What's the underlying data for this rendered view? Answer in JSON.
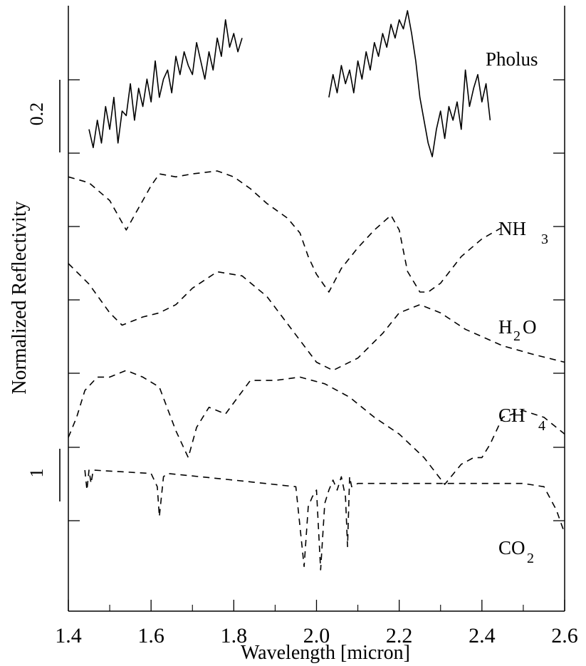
{
  "chart_data": {
    "type": "line",
    "title": "",
    "xlabel": "Wavelength [micron]",
    "ylabel": "Normalized Reflectivity",
    "xlim": [
      1.4,
      2.6
    ],
    "x_ticks": [
      "1.4",
      "1.6",
      "1.8",
      "2.0",
      "2.2",
      "2.4",
      "2.6"
    ],
    "grid": false,
    "scale_bars": [
      {
        "label": "0.2",
        "value": 0.2
      },
      {
        "label": "1",
        "value": 1
      }
    ],
    "series": [
      {
        "name": "Pholus",
        "style": "solid",
        "segments": [
          {
            "x": [
              1.45,
              1.46,
              1.47,
              1.48,
              1.49,
              1.5,
              1.51,
              1.52,
              1.53,
              1.54,
              1.55,
              1.56,
              1.57,
              1.58,
              1.59,
              1.6,
              1.61,
              1.62,
              1.63,
              1.64,
              1.65,
              1.66,
              1.67,
              1.68,
              1.69,
              1.7,
              1.71,
              1.72,
              1.73,
              1.74,
              1.75,
              1.76,
              1.77,
              1.78,
              1.79,
              1.8,
              1.81,
              1.82
            ],
            "y": [
              0.07,
              0.03,
              0.09,
              0.04,
              0.12,
              0.07,
              0.14,
              0.04,
              0.11,
              0.1,
              0.17,
              0.09,
              0.16,
              0.12,
              0.18,
              0.13,
              0.22,
              0.14,
              0.18,
              0.2,
              0.15,
              0.23,
              0.19,
              0.24,
              0.21,
              0.19,
              0.26,
              0.22,
              0.18,
              0.24,
              0.2,
              0.27,
              0.23,
              0.31,
              0.25,
              0.28,
              0.24,
              0.27
            ]
          },
          {
            "x": [
              2.03,
              2.04,
              2.05,
              2.06,
              2.07,
              2.08,
              2.09,
              2.1,
              2.11,
              2.12,
              2.13,
              2.14,
              2.15,
              2.16,
              2.17,
              2.18,
              2.19,
              2.2,
              2.21,
              2.22,
              2.23,
              2.24,
              2.25,
              2.26,
              2.27,
              2.28,
              2.29,
              2.3,
              2.31,
              2.32,
              2.33,
              2.34,
              2.35,
              2.36,
              2.37,
              2.38,
              2.39,
              2.4,
              2.41,
              2.42
            ],
            "y": [
              0.14,
              0.19,
              0.15,
              0.21,
              0.17,
              0.2,
              0.15,
              0.22,
              0.18,
              0.24,
              0.2,
              0.26,
              0.23,
              0.28,
              0.25,
              0.3,
              0.27,
              0.31,
              0.29,
              0.33,
              0.28,
              0.22,
              0.14,
              0.09,
              0.04,
              0.01,
              0.07,
              0.11,
              0.05,
              0.12,
              0.09,
              0.13,
              0.07,
              0.2,
              0.12,
              0.16,
              0.19,
              0.13,
              0.17,
              0.09
            ]
          }
        ]
      },
      {
        "name": "NH3",
        "style": "dashed",
        "x": [
          1.4,
          1.45,
          1.5,
          1.54,
          1.56,
          1.6,
          1.62,
          1.66,
          1.7,
          1.76,
          1.8,
          1.84,
          1.88,
          1.93,
          1.96,
          1.98,
          2.0,
          2.03,
          2.06,
          2.1,
          2.14,
          2.18,
          2.2,
          2.22,
          2.25,
          2.27,
          2.3,
          2.35,
          2.4,
          2.45
        ],
        "y": [
          0.3,
          0.28,
          0.22,
          0.12,
          0.17,
          0.27,
          0.31,
          0.3,
          0.31,
          0.32,
          0.3,
          0.26,
          0.21,
          0.16,
          0.11,
          0.03,
          -0.03,
          -0.09,
          -0.01,
          0.06,
          0.12,
          0.17,
          0.12,
          -0.02,
          -0.09,
          -0.09,
          -0.06,
          0.03,
          0.09,
          0.13
        ]
      },
      {
        "name": "H2O",
        "style": "dashed",
        "x": [
          1.4,
          1.45,
          1.5,
          1.53,
          1.58,
          1.62,
          1.66,
          1.7,
          1.76,
          1.82,
          1.88,
          1.94,
          2.0,
          2.04,
          2.1,
          2.16,
          2.2,
          2.25,
          2.3,
          2.36,
          2.45,
          2.52,
          2.6
        ],
        "y": [
          0.3,
          0.25,
          0.18,
          0.15,
          0.17,
          0.18,
          0.2,
          0.24,
          0.28,
          0.27,
          0.22,
          0.14,
          0.06,
          0.04,
          0.07,
          0.13,
          0.18,
          0.2,
          0.18,
          0.14,
          0.1,
          0.08,
          0.06
        ]
      },
      {
        "name": "CH4",
        "style": "dashed",
        "x": [
          1.4,
          1.42,
          1.44,
          1.47,
          1.5,
          1.54,
          1.58,
          1.62,
          1.66,
          1.69,
          1.71,
          1.74,
          1.78,
          1.81,
          1.84,
          1.9,
          1.96,
          2.02,
          2.08,
          2.14,
          2.2,
          2.26,
          2.31,
          2.35,
          2.38,
          2.4,
          2.42,
          2.45,
          2.5,
          2.55,
          2.6
        ],
        "y": [
          0.12,
          0.18,
          0.26,
          0.3,
          0.3,
          0.32,
          0.3,
          0.27,
          0.14,
          0.06,
          0.15,
          0.21,
          0.19,
          0.24,
          0.29,
          0.29,
          0.3,
          0.28,
          0.24,
          0.18,
          0.13,
          0.06,
          -0.02,
          0.04,
          0.06,
          0.06,
          0.1,
          0.18,
          0.2,
          0.18,
          0.13
        ]
      },
      {
        "name": "CO2",
        "style": "dashed",
        "x": [
          1.44,
          1.445,
          1.45,
          1.455,
          1.46,
          1.6,
          1.615,
          1.62,
          1.63,
          1.64,
          1.8,
          1.95,
          1.97,
          1.98,
          1.99,
          2.0,
          2.01,
          2.02,
          2.03,
          2.04,
          2.05,
          2.06,
          2.07,
          2.075,
          2.08,
          2.085,
          2.1,
          2.3,
          2.5,
          2.55,
          2.58,
          2.6
        ],
        "y": [
          0.24,
          0.18,
          0.24,
          0.2,
          0.24,
          0.23,
          0.19,
          0.1,
          0.22,
          0.23,
          0.21,
          0.19,
          -0.05,
          0.13,
          0.16,
          0.18,
          -0.06,
          0.14,
          0.18,
          0.21,
          0.18,
          0.22,
          0.16,
          0.01,
          0.22,
          0.19,
          0.2,
          0.2,
          0.2,
          0.19,
          0.12,
          0.05
        ]
      }
    ],
    "series_labels": [
      "Pholus",
      "NH",
      "3",
      "H",
      "2",
      "O",
      "CH",
      "4",
      "CO",
      "2"
    ]
  }
}
